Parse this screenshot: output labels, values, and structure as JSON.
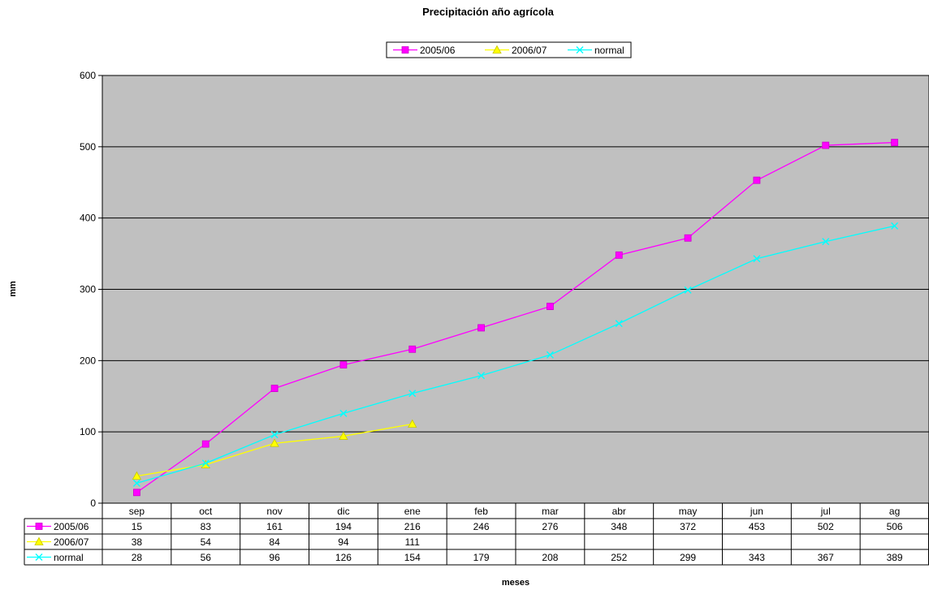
{
  "chart_data": {
    "type": "line",
    "title": "Precipitación año agrícola",
    "xlabel": "meses",
    "ylabel": "mm",
    "categories": [
      "sep",
      "oct",
      "nov",
      "dic",
      "ene",
      "feb",
      "mar",
      "abr",
      "may",
      "jun",
      "jul",
      "ag"
    ],
    "yticks": [
      "0",
      "100",
      "200",
      "300",
      "400",
      "500",
      "600"
    ],
    "ylim": [
      0,
      600
    ],
    "grid": true,
    "plot_background": "#c0c0c0",
    "legend_position": "top-center",
    "data_table": true,
    "series": [
      {
        "name": "2005/06",
        "color": "#ff00ff",
        "marker": "square",
        "values": [
          15,
          83,
          161,
          194,
          216,
          246,
          276,
          348,
          372,
          453,
          502,
          506
        ]
      },
      {
        "name": "2006/07",
        "color": "#ffff00",
        "marker": "triangle",
        "values": [
          38,
          54,
          84,
          94,
          111,
          null,
          null,
          null,
          null,
          null,
          null,
          null
        ]
      },
      {
        "name": "normal",
        "color": "#00ffff",
        "marker": "x",
        "values": [
          28,
          56,
          96,
          126,
          154,
          179,
          208,
          252,
          299,
          343,
          367,
          389
        ]
      }
    ]
  }
}
